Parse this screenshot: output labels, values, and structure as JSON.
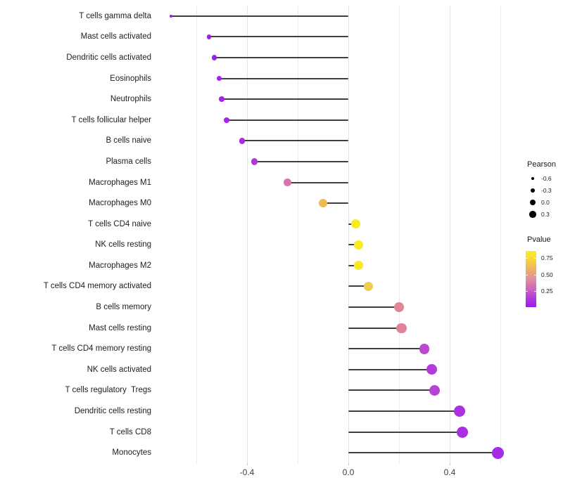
{
  "chart_data": {
    "type": "lollipop",
    "title": "",
    "xlabel": "",
    "ylabel": "",
    "x_range": [
      -0.75,
      0.655
    ],
    "x_tick_labels": [
      "-0.4",
      "0.0",
      "0.4"
    ],
    "x_tick_values": [
      -0.4,
      0.0,
      0.4
    ],
    "grid_values": [
      -0.6,
      -0.4,
      -0.2,
      0.0,
      0.2,
      0.4,
      0.6
    ],
    "grid_on": true,
    "stem_origin": 0.0,
    "rows": [
      {
        "label": "T cells gamma delta",
        "pearson": -0.7,
        "color": "#9E17F0"
      },
      {
        "label": "Mast cells activated",
        "pearson": -0.55,
        "color": "#A21EEC"
      },
      {
        "label": "Dendritic cells activated",
        "pearson": -0.53,
        "color": "#A21EEC"
      },
      {
        "label": "Eosinophils",
        "pearson": -0.51,
        "color": "#A422EA"
      },
      {
        "label": "Neutrophils",
        "pearson": -0.5,
        "color": "#A524E8"
      },
      {
        "label": "T cells follicular helper",
        "pearson": -0.48,
        "color": "#A526E6"
      },
      {
        "label": "B cells naive",
        "pearson": -0.42,
        "color": "#A82CE2"
      },
      {
        "label": "Plasma cells",
        "pearson": -0.37,
        "color": "#AE38D8"
      },
      {
        "label": "Macrophages M1",
        "pearson": -0.24,
        "color": "#D873AE"
      },
      {
        "label": "Macrophages M0",
        "pearson": -0.1,
        "color": "#ECBB56"
      },
      {
        "label": "T cells CD4 naive",
        "pearson": 0.03,
        "color": "#F9EC1E"
      },
      {
        "label": "NK cells resting",
        "pearson": 0.04,
        "color": "#F9EB20"
      },
      {
        "label": "Macrophages M2",
        "pearson": 0.04,
        "color": "#F8EA22"
      },
      {
        "label": "T cells CD4 memory activated",
        "pearson": 0.08,
        "color": "#EFCD4F"
      },
      {
        "label": "B cells memory",
        "pearson": 0.2,
        "color": "#E08598"
      },
      {
        "label": "Mast cells resting",
        "pearson": 0.21,
        "color": "#DF8399"
      },
      {
        "label": "T cells CD4 memory resting",
        "pearson": 0.3,
        "color": "#BC48D0"
      },
      {
        "label": "NK cells activated",
        "pearson": 0.33,
        "color": "#B23CDA"
      },
      {
        "label": "T cells regulatory  Tregs",
        "pearson": 0.34,
        "color": "#B742D4"
      },
      {
        "label": "Dendritic cells resting",
        "pearson": 0.44,
        "color": "#AA30E0"
      },
      {
        "label": "T cells CD8",
        "pearson": 0.45,
        "color": "#A92EE1"
      },
      {
        "label": "Monocytes",
        "pearson": 0.59,
        "color": "#A62BE6"
      }
    ],
    "size_legend": {
      "title": "Pearson",
      "items": [
        {
          "label": "-0.6",
          "radius": 2.2
        },
        {
          "label": "-0.3",
          "radius": 3.3
        },
        {
          "label": "0.0",
          "radius": 4.1
        },
        {
          "label": "0.3",
          "radius": 4.8
        }
      ]
    },
    "color_legend": {
      "title": "Pvalue",
      "tick_labels": [
        "0.75",
        "0.50",
        "0.25"
      ],
      "gradient_stops_bottom_to_top": [
        "#A018F2",
        "#B43BDC",
        "#CE67BE",
        "#E090A0",
        "#EDB066",
        "#F5D53C",
        "#F9EE22"
      ]
    }
  }
}
